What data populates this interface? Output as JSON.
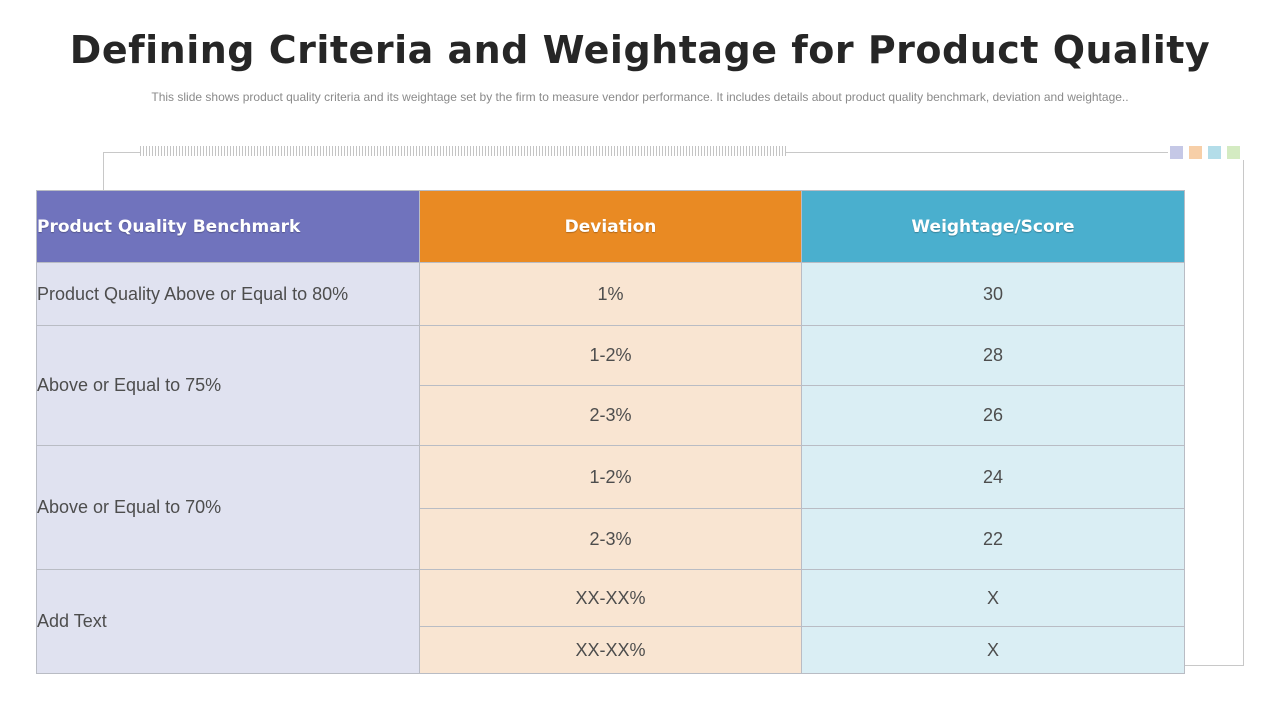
{
  "title": "Defining Criteria and Weightage for Product Quality",
  "subtitle": "This slide shows product quality criteria and its weightage  set by the firm to measure vendor  performance.  It includes details about product quality benchmark,  deviation  and weightage..",
  "decor_colors": [
    "#c5c8e6",
    "#f7cfa8",
    "#b3dde9",
    "#d4ebc2"
  ],
  "table": {
    "headers": [
      "Product  Quality Benchmark",
      "Deviation",
      "Weightage/Score"
    ],
    "header_colors": [
      "#7073bd",
      "#e98a23",
      "#4aafce"
    ],
    "groups": [
      {
        "benchmark": "Product Quality Above or Equal to 80%",
        "rows": [
          {
            "deviation": "1%",
            "score": "30"
          }
        ]
      },
      {
        "benchmark": "Above or Equal to 75%",
        "rows": [
          {
            "deviation": "1-2%",
            "score": "28"
          },
          {
            "deviation": "2-3%",
            "score": "26"
          }
        ]
      },
      {
        "benchmark": "Above or Equal to 70%",
        "rows": [
          {
            "deviation": "1-2%",
            "score": "24"
          },
          {
            "deviation": "2-3%",
            "score": "22"
          }
        ]
      },
      {
        "benchmark": "Add Text",
        "rows": [
          {
            "deviation": "XX-XX%",
            "score": "X"
          },
          {
            "deviation": "XX-XX%",
            "score": "X"
          }
        ]
      }
    ]
  }
}
